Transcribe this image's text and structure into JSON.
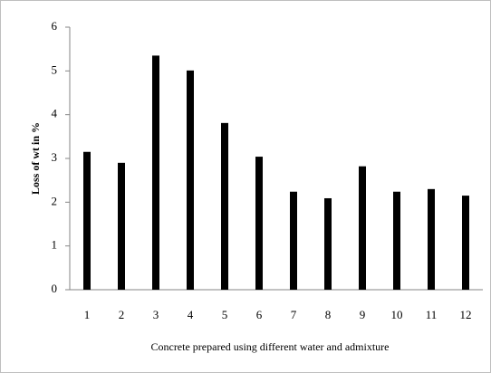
{
  "chart_data": {
    "type": "bar",
    "x_label": "Concrete prepared using different water and admixture",
    "y_label": "Loss of wt in %",
    "categories": [
      "1",
      "2",
      "3",
      "4",
      "5",
      "6",
      "7",
      "8",
      "9",
      "10",
      "11",
      "12"
    ],
    "values": [
      3.15,
      2.9,
      5.35,
      5.01,
      3.81,
      3.04,
      2.24,
      2.09,
      2.82,
      2.24,
      2.3,
      2.15
    ],
    "color": "#000000",
    "ylim": [
      0,
      6
    ],
    "yticks": [
      0,
      1,
      2,
      3,
      4,
      5,
      6
    ],
    "grid": false
  }
}
